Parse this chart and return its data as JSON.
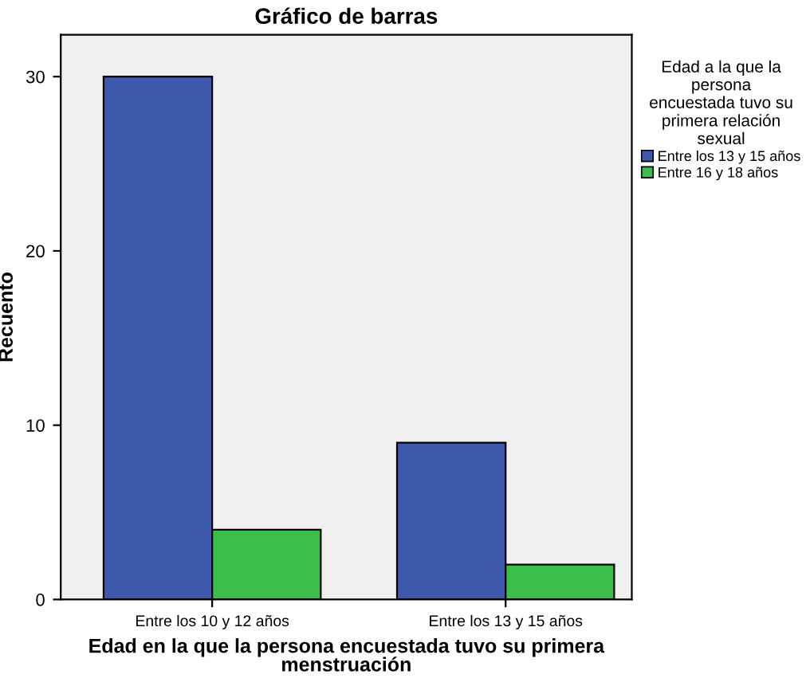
{
  "chart_data": {
    "type": "bar",
    "title": "Gráfico de barras",
    "xlabel": "Edad en la que la persona encuestada tuvo su primera\nmenstruación",
    "ylabel": "Recuento",
    "legend_title": "Edad a la que la\npersona\nencuestada tuvo su\nprimera relación\nsexual",
    "categories": [
      "Entre los 10 y 12 años",
      "Entre los 13 y 15 años"
    ],
    "series": [
      {
        "name": "Entre los 13 y 15 años",
        "color": "#3e58ac",
        "values": [
          30,
          9
        ]
      },
      {
        "name": "Entre 16 y 18 años",
        "color": "#3cbe4a",
        "values": [
          4,
          2
        ]
      }
    ],
    "ylim": [
      0,
      32.4
    ],
    "yticks": [
      0,
      10,
      20,
      30
    ],
    "grid": false,
    "legend": "right"
  }
}
